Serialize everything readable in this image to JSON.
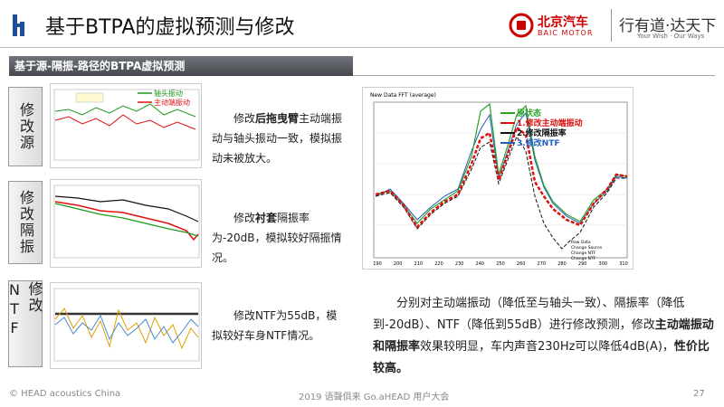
{
  "header": {
    "title": "基于BTPA的虚拟预测与修改",
    "brand": "北京汽车",
    "brand_en": "BAIC MOTOR",
    "slogan": "行有道·达天下",
    "slogan_en": "Your Wish · Our Ways"
  },
  "section": {
    "title": "基于源-隔振-路径的BTPA虚拟预测"
  },
  "rows": [
    {
      "label": "修改源",
      "legend": [
        {
          "name": "轴头振动",
          "color": "#1a9a1a"
        },
        {
          "name": "主动端振动",
          "color": "#e01010"
        }
      ],
      "text": [
        {
          "text": "修改",
          "bold": false
        },
        {
          "text": "后拖曳臂",
          "bold": true
        },
        {
          "text": "主动端振动与轴头振动一致，模拟振动未被放大。",
          "bold": false
        }
      ]
    },
    {
      "label": "修改隔振",
      "text": [
        {
          "text": "修改",
          "bold": false
        },
        {
          "text": "衬套",
          "bold": true
        },
        {
          "text": "隔振率为-20dB，模拟较好隔振情况。",
          "bold": false
        }
      ]
    },
    {
      "label": "修改NTF",
      "text": [
        {
          "text": "修改NTF为55dB，模拟较好车身NTF情况。",
          "bold": false
        }
      ]
    }
  ],
  "big_chart": {
    "title": "New Data FFT (average)",
    "legend": [
      {
        "name": "原状态",
        "color": "#2aa22a"
      },
      {
        "name": "1.修改主动端振动",
        "color": "#e01010"
      },
      {
        "name": "2.修改隔振率",
        "color": "#111111"
      },
      {
        "name": "3.修改NTF",
        "color": "#1f5fbf"
      }
    ],
    "small_legend": [
      "Raw Data",
      "Change Source",
      "Change NTF",
      "Change NTF"
    ],
    "xticks": [
      "190",
      "200",
      "210",
      "220",
      "230",
      "240",
      "250",
      "260",
      "270",
      "280",
      "290",
      "300",
      "310"
    ]
  },
  "summary": [
    {
      "text": "分别对主动端振动（降低至与轴头一致）、隔振率（降低到-20dB）、NTF（降低到55dB）进行修改预测，修改",
      "bold": false
    },
    {
      "text": "主动端振动和隔振率",
      "bold": true
    },
    {
      "text": "效果较明显，车内声音230Hz可以降低4dB(A)，",
      "bold": true,
      "weight": "normal"
    },
    {
      "text": "性价比较高。",
      "bold": true
    }
  ],
  "footer": {
    "left": "© HEAD acoustics China",
    "center": "2019 语聲俱来 Go.aHEAD 用户大会",
    "page": "27"
  }
}
